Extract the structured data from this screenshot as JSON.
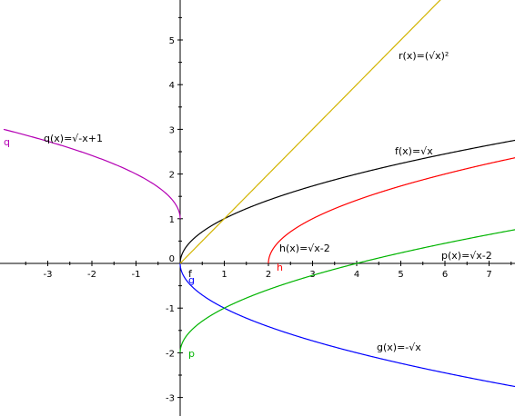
{
  "chart_data": {
    "type": "line",
    "title": "",
    "xlabel": "",
    "ylabel": "",
    "xlim": [
      -4,
      7.6
    ],
    "ylim": [
      -3.45,
      5.95
    ],
    "grid": false,
    "x_ticks": [
      "-3",
      "-2",
      "-1",
      "1",
      "2",
      "3",
      "4",
      "5",
      "6",
      "7"
    ],
    "y_ticks": [
      "-3",
      "-2",
      "-1",
      "1",
      "2",
      "3",
      "4",
      "5"
    ],
    "origin_label": "0",
    "series": [
      {
        "id": "f",
        "label": "f(x)=√x",
        "short": "f",
        "color": "#000000",
        "domain": [
          0,
          7.6
        ],
        "points": [
          [
            0,
            0
          ],
          [
            1,
            1
          ],
          [
            4,
            2
          ],
          [
            7.6,
            2.76
          ]
        ]
      },
      {
        "id": "g",
        "label": "g(x)=-√x",
        "short": "g",
        "color": "#0000ff",
        "domain": [
          0,
          7.6
        ],
        "points": [
          [
            0,
            0
          ],
          [
            1,
            -1
          ],
          [
            4,
            -2
          ],
          [
            7.6,
            -2.76
          ]
        ]
      },
      {
        "id": "h",
        "label": "h(x)=√x-2",
        "short": "h",
        "color": "#ff0000",
        "domain": [
          2,
          7.6
        ],
        "points": [
          [
            2,
            0
          ],
          [
            3,
            1
          ],
          [
            6,
            2
          ],
          [
            7.6,
            2.37
          ]
        ]
      },
      {
        "id": "p",
        "label": "p(x)=√x-2",
        "short": "p",
        "color": "#00b400",
        "domain": [
          0,
          7.6
        ],
        "points": [
          [
            0,
            -2
          ],
          [
            1,
            -1
          ],
          [
            4,
            0
          ],
          [
            7.6,
            0.76
          ]
        ]
      },
      {
        "id": "q",
        "label": "q(x)=√-x+1",
        "short": "q",
        "color": "#b400b4",
        "domain": [
          -4,
          0
        ],
        "points": [
          [
            -4,
            3
          ],
          [
            -1,
            2
          ],
          [
            0,
            1
          ]
        ]
      },
      {
        "id": "r",
        "label": "r(x)=(√x)²",
        "short": "",
        "color": "#d2b400",
        "domain": [
          0,
          7.6
        ],
        "points": [
          [
            0,
            0
          ],
          [
            1,
            1
          ],
          [
            5,
            5
          ],
          [
            5.95,
            5.95
          ]
        ]
      }
    ]
  }
}
